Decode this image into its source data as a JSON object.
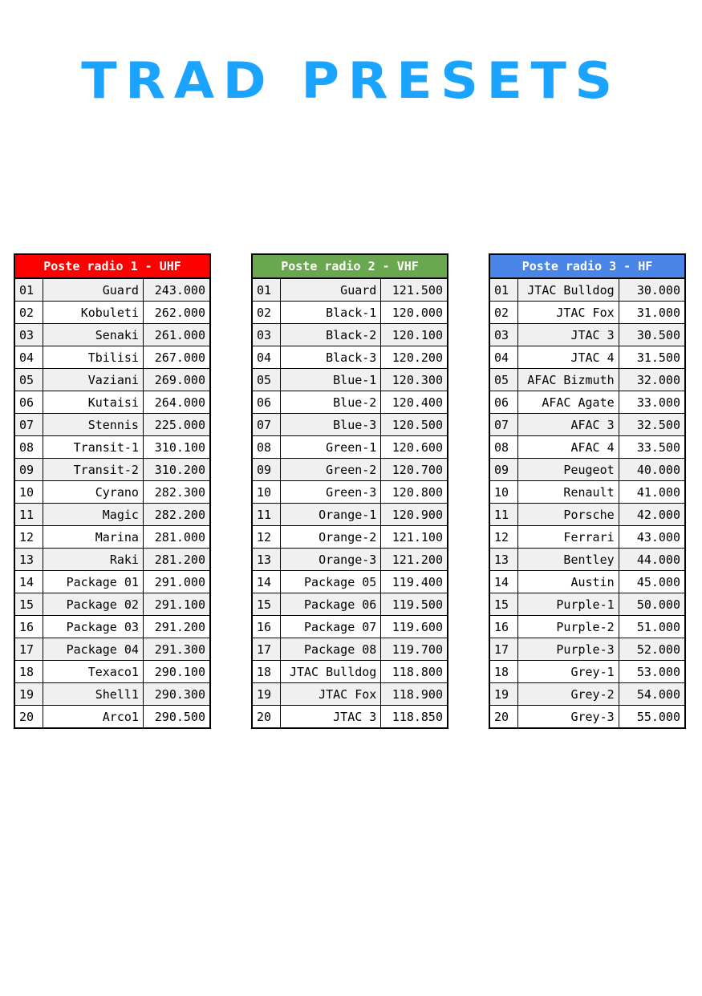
{
  "title": "TRAD PRESETS",
  "colors": {
    "title": "#1aa3ff",
    "uhf": "#ff0000",
    "vhf": "#6aa84f",
    "hf": "#4a86e8"
  },
  "tables": [
    {
      "header": "Poste radio 1 - UHF",
      "color": "#ff0000",
      "rows": [
        [
          "01",
          "Guard",
          "243.000"
        ],
        [
          "02",
          "Kobuleti",
          "262.000"
        ],
        [
          "03",
          "Senaki",
          "261.000"
        ],
        [
          "04",
          "Tbilisi",
          "267.000"
        ],
        [
          "05",
          "Vaziani",
          "269.000"
        ],
        [
          "06",
          "Kutaisi",
          "264.000"
        ],
        [
          "07",
          "Stennis",
          "225.000"
        ],
        [
          "08",
          "Transit-1",
          "310.100"
        ],
        [
          "09",
          "Transit-2",
          "310.200"
        ],
        [
          "10",
          "Cyrano",
          "282.300"
        ],
        [
          "11",
          "Magic",
          "282.200"
        ],
        [
          "12",
          "Marina",
          "281.000"
        ],
        [
          "13",
          "Raki",
          "281.200"
        ],
        [
          "14",
          "Package 01",
          "291.000"
        ],
        [
          "15",
          "Package 02",
          "291.100"
        ],
        [
          "16",
          "Package 03",
          "291.200"
        ],
        [
          "17",
          "Package 04",
          "291.300"
        ],
        [
          "18",
          "Texaco1",
          "290.100"
        ],
        [
          "19",
          "Shell1",
          "290.300"
        ],
        [
          "20",
          "Arco1",
          "290.500"
        ]
      ]
    },
    {
      "header": "Poste radio 2 - VHF",
      "color": "#6aa84f",
      "rows": [
        [
          "01",
          "Guard",
          "121.500"
        ],
        [
          "02",
          "Black-1",
          "120.000"
        ],
        [
          "03",
          "Black-2",
          "120.100"
        ],
        [
          "04",
          "Black-3",
          "120.200"
        ],
        [
          "05",
          "Blue-1",
          "120.300"
        ],
        [
          "06",
          "Blue-2",
          "120.400"
        ],
        [
          "07",
          "Blue-3",
          "120.500"
        ],
        [
          "08",
          "Green-1",
          "120.600"
        ],
        [
          "09",
          "Green-2",
          "120.700"
        ],
        [
          "10",
          "Green-3",
          "120.800"
        ],
        [
          "11",
          "Orange-1",
          "120.900"
        ],
        [
          "12",
          "Orange-2",
          "121.100"
        ],
        [
          "13",
          "Orange-3",
          "121.200"
        ],
        [
          "14",
          "Package 05",
          "119.400"
        ],
        [
          "15",
          "Package 06",
          "119.500"
        ],
        [
          "16",
          "Package 07",
          "119.600"
        ],
        [
          "17",
          "Package 08",
          "119.700"
        ],
        [
          "18",
          "JTAC Bulldog",
          "118.800"
        ],
        [
          "19",
          "JTAC Fox",
          "118.900"
        ],
        [
          "20",
          "JTAC 3",
          "118.850"
        ]
      ]
    },
    {
      "header": "Poste radio 3 - HF",
      "color": "#4a86e8",
      "rows": [
        [
          "01",
          "JTAC Bulldog",
          "30.000"
        ],
        [
          "02",
          "JTAC Fox",
          "31.000"
        ],
        [
          "03",
          "JTAC 3",
          "30.500"
        ],
        [
          "04",
          "JTAC 4",
          "31.500"
        ],
        [
          "05",
          "AFAC Bizmuth",
          "32.000"
        ],
        [
          "06",
          "AFAC Agate",
          "33.000"
        ],
        [
          "07",
          "AFAC 3",
          "32.500"
        ],
        [
          "08",
          "AFAC 4",
          "33.500"
        ],
        [
          "09",
          "Peugeot",
          "40.000"
        ],
        [
          "10",
          "Renault",
          "41.000"
        ],
        [
          "11",
          "Porsche",
          "42.000"
        ],
        [
          "12",
          "Ferrari",
          "43.000"
        ],
        [
          "13",
          "Bentley",
          "44.000"
        ],
        [
          "14",
          "Austin",
          "45.000"
        ],
        [
          "15",
          "Purple-1",
          "50.000"
        ],
        [
          "16",
          "Purple-2",
          "51.000"
        ],
        [
          "17",
          "Purple-3",
          "52.000"
        ],
        [
          "18",
          "Grey-1",
          "53.000"
        ],
        [
          "19",
          "Grey-2",
          "54.000"
        ],
        [
          "20",
          "Grey-3",
          "55.000"
        ]
      ]
    }
  ]
}
